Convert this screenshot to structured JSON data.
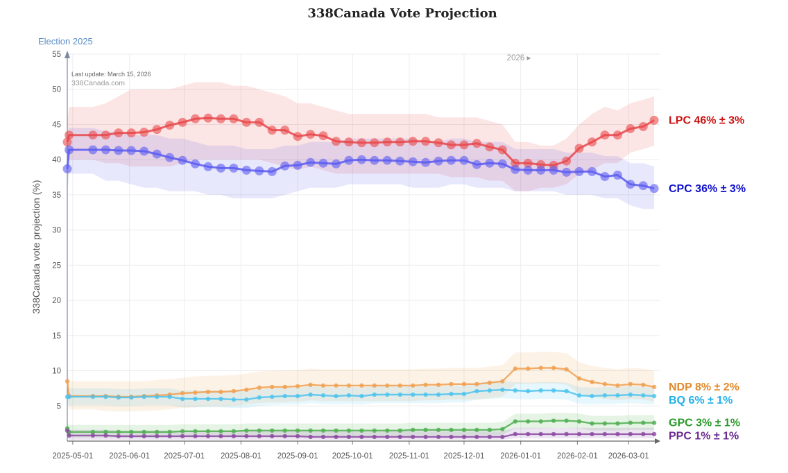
{
  "chart_data": {
    "type": "line",
    "title": "338Canada Vote Projection",
    "ylabel": "338Canada vote projection (%)",
    "xlabel": "",
    "ylim": [
      0,
      55
    ],
    "yticks": [
      5,
      10,
      15,
      20,
      25,
      30,
      35,
      40,
      45,
      50,
      55
    ],
    "xlim": [
      "2025-04-28",
      "2026-03-18"
    ],
    "xticks": [
      "2025-05-01",
      "2025-06-01",
      "2025-07-01",
      "2025-08-01",
      "2025-09-01",
      "2025-10-01",
      "2025-11-01",
      "2025-12-01",
      "2026-01-01",
      "2026-02-01",
      "2026-03-01"
    ],
    "election_label": "Election 2025",
    "last_update": "Last update: March 15, 2026",
    "watermark": "338Canada.com",
    "year_marker": "2026 ▸",
    "year_marker_date": "2026-01-01",
    "dates_big": [
      "2025-04-28",
      "2025-04-29",
      "2025-05-12",
      "2025-05-19",
      "2025-05-26",
      "2025-06-02",
      "2025-06-09",
      "2025-06-16",
      "2025-06-23",
      "2025-06-30",
      "2025-07-07",
      "2025-07-14",
      "2025-07-21",
      "2025-07-28",
      "2025-08-04",
      "2025-08-11",
      "2025-08-18",
      "2025-08-25",
      "2025-09-01",
      "2025-09-08",
      "2025-09-15",
      "2025-09-22",
      "2025-09-29",
      "2025-10-06",
      "2025-10-13",
      "2025-10-20",
      "2025-10-27",
      "2025-11-03",
      "2025-11-10",
      "2025-11-17",
      "2025-11-24",
      "2025-12-01",
      "2025-12-08",
      "2025-12-15",
      "2025-12-22",
      "2025-12-29",
      "2026-01-05",
      "2026-01-12",
      "2026-01-19",
      "2026-01-26",
      "2026-02-02",
      "2026-02-09",
      "2026-02-16",
      "2026-02-23",
      "2026-03-02",
      "2026-03-09",
      "2026-03-15"
    ],
    "dates_small": [
      "2025-04-28",
      "2025-04-29",
      "2025-05-12",
      "2025-05-19",
      "2025-05-26",
      "2025-06-02",
      "2025-06-09",
      "2025-06-16",
      "2025-06-23",
      "2025-06-30",
      "2025-07-07",
      "2025-07-14",
      "2025-07-21",
      "2025-07-28",
      "2025-08-04",
      "2025-08-11",
      "2025-08-18",
      "2025-08-25",
      "2025-09-01",
      "2025-09-08",
      "2025-09-15",
      "2025-09-22",
      "2025-09-29",
      "2025-10-06",
      "2025-10-13",
      "2025-10-20",
      "2025-10-27",
      "2025-11-03",
      "2025-11-10",
      "2025-11-17",
      "2025-11-24",
      "2025-12-01",
      "2025-12-08",
      "2025-12-15",
      "2025-12-22",
      "2025-12-29",
      "2026-01-05",
      "2026-01-12",
      "2026-01-19",
      "2026-01-26",
      "2026-02-02",
      "2026-02-09",
      "2026-02-16",
      "2026-02-23",
      "2026-03-02",
      "2026-03-09",
      "2026-03-15"
    ],
    "series": [
      {
        "name": "LPC",
        "color": "#e8474a",
        "label_color": "#cc1111",
        "label": "LPC 46% ± 3%",
        "marker": "big",
        "values": [
          42.5,
          43.5,
          43.5,
          43.5,
          43.8,
          43.8,
          43.9,
          44.3,
          44.9,
          45.3,
          45.8,
          45.9,
          45.8,
          45.8,
          45.3,
          45.3,
          44.2,
          44.2,
          43.3,
          43.6,
          43.4,
          42.6,
          42.5,
          42.4,
          42.4,
          42.5,
          42.5,
          42.6,
          42.6,
          42.4,
          42.1,
          42.1,
          42.3,
          41.8,
          41.4,
          39.5,
          39.5,
          39.3,
          39.2,
          39.8,
          41.6,
          42.5,
          43.5,
          43.5,
          44.4,
          44.7,
          45.6
        ],
        "upper": [
          45.5,
          47.5,
          47.5,
          48,
          49,
          50,
          50,
          50,
          50,
          50.5,
          51,
          51,
          51,
          50.5,
          50.5,
          50,
          49.5,
          49,
          48,
          48,
          47.5,
          47,
          46.5,
          46.5,
          46.5,
          46.5,
          46.5,
          46.5,
          46.5,
          46,
          46,
          46,
          46,
          45.5,
          45,
          42.5,
          42.5,
          42,
          42,
          43,
          45,
          46.5,
          47.5,
          47,
          48,
          48.5,
          49
        ],
        "lower": [
          39.5,
          40,
          40,
          39.5,
          39.5,
          39,
          39,
          39,
          39,
          39.5,
          40,
          40,
          40,
          40,
          40,
          40,
          39.5,
          39,
          38.5,
          39,
          38.5,
          38,
          38,
          38,
          38,
          38,
          38,
          38,
          38,
          38,
          37.5,
          37.5,
          37.5,
          37,
          37,
          35.5,
          35.5,
          36,
          36,
          36.5,
          38,
          38.5,
          39.5,
          39.5,
          41,
          41.5,
          42
        ]
      },
      {
        "name": "CPC",
        "color": "#5b5bf0",
        "label_color": "#1010cc",
        "label": "CPC 36% ± 3%",
        "marker": "big",
        "values": [
          38.7,
          41.4,
          41.4,
          41.4,
          41.3,
          41.3,
          41.2,
          40.8,
          40.3,
          39.9,
          39.4,
          39.0,
          38.8,
          38.8,
          38.5,
          38.4,
          38.3,
          39.1,
          39.2,
          39.6,
          39.5,
          39.4,
          39.9,
          40.0,
          39.9,
          39.9,
          39.8,
          39.7,
          39.6,
          39.8,
          39.9,
          39.9,
          39.3,
          39.5,
          39.4,
          38.6,
          38.5,
          38.5,
          38.5,
          38.2,
          38.3,
          38.3,
          37.6,
          37.8,
          36.5,
          36.3,
          35.9
        ],
        "upper": [
          41.5,
          44.5,
          44.5,
          44,
          44,
          43.5,
          43.5,
          43.5,
          43,
          43,
          42.5,
          42,
          42,
          42,
          41.5,
          41.5,
          41.5,
          42,
          42,
          42.5,
          42.5,
          42.5,
          43,
          43,
          43,
          43,
          43,
          43,
          42.5,
          42.5,
          43,
          43,
          42.5,
          42.5,
          42.5,
          41.5,
          41.5,
          41.5,
          41.5,
          41,
          41,
          41,
          40.5,
          40.5,
          39.5,
          39.5,
          39
        ],
        "lower": [
          35.5,
          38,
          38,
          37,
          37,
          36.5,
          36,
          36,
          35.5,
          35.5,
          35.5,
          35,
          35,
          34.5,
          34.5,
          34.5,
          34.5,
          35,
          35.5,
          36,
          36,
          36,
          36.5,
          36.5,
          36.5,
          36.5,
          36.5,
          36,
          36,
          36,
          36.5,
          36.5,
          36,
          36,
          36,
          35.5,
          35.5,
          35.5,
          35.5,
          35,
          35,
          35,
          34.5,
          34.5,
          33.5,
          33,
          33
        ]
      },
      {
        "name": "NDP",
        "color": "#f0a050",
        "label_color": "#e08a2a",
        "label": "NDP 8% ± 2%",
        "marker": "small",
        "values": [
          8.5,
          6.4,
          6.4,
          6.4,
          6.3,
          6.3,
          6.4,
          6.5,
          6.6,
          6.8,
          6.9,
          7.0,
          7.0,
          7.1,
          7.3,
          7.6,
          7.7,
          7.7,
          7.8,
          8.0,
          7.9,
          7.9,
          7.9,
          7.9,
          7.9,
          7.9,
          7.9,
          7.9,
          8.0,
          8.0,
          8.1,
          8.1,
          8.1,
          8.3,
          8.5,
          10.3,
          10.3,
          10.4,
          10.4,
          10.2,
          8.9,
          8.4,
          8.1,
          7.9,
          8.1,
          8.0,
          7.7
        ],
        "upper": [
          10.5,
          8.5,
          8.5,
          8.5,
          8.5,
          8.5,
          8.5,
          8.7,
          8.8,
          9,
          9.2,
          9.3,
          9.3,
          9.4,
          9.6,
          9.9,
          10,
          10,
          10.1,
          10.3,
          10.2,
          10.2,
          10.2,
          10.2,
          10.2,
          10.2,
          10.2,
          10.2,
          10.3,
          10.3,
          10.4,
          10.4,
          10.4,
          10.6,
          10.8,
          12.6,
          12.6,
          12.7,
          12.7,
          12.5,
          11.2,
          10.7,
          10.4,
          10.2,
          10.4,
          10.3,
          10
        ],
        "lower": [
          6.5,
          4.5,
          4.5,
          4.3,
          4.2,
          4.2,
          4.3,
          4.4,
          4.5,
          4.7,
          4.8,
          4.9,
          4.9,
          5,
          5.2,
          5.4,
          5.5,
          5.5,
          5.6,
          5.8,
          5.7,
          5.7,
          5.7,
          5.7,
          5.7,
          5.7,
          5.7,
          5.7,
          5.8,
          5.8,
          5.9,
          5.9,
          5.9,
          6.1,
          6.3,
          8.1,
          8.1,
          8.2,
          8.2,
          8,
          6.8,
          6.3,
          6,
          5.8,
          6,
          5.9,
          5.6
        ]
      },
      {
        "name": "BQ",
        "color": "#4cc3ee",
        "label_color": "#22b0e8",
        "label": "BQ 6% ± 1%",
        "marker": "small",
        "values": [
          6.3,
          6.3,
          6.3,
          6.3,
          6.2,
          6.2,
          6.3,
          6.3,
          6.3,
          6.0,
          6.0,
          6.0,
          6.0,
          5.9,
          5.9,
          6.2,
          6.3,
          6.4,
          6.4,
          6.6,
          6.5,
          6.4,
          6.5,
          6.4,
          6.6,
          6.6,
          6.6,
          6.6,
          6.6,
          6.6,
          6.7,
          6.7,
          7.1,
          7.2,
          7.3,
          7.2,
          7.1,
          7.2,
          7.2,
          7.1,
          6.5,
          6.4,
          6.5,
          6.5,
          6.6,
          6.5,
          6.4
        ],
        "upper": [
          7.5,
          7.5,
          7.5,
          7.5,
          7.4,
          7.4,
          7.5,
          7.5,
          7.5,
          7.2,
          7.2,
          7.2,
          7.2,
          7.1,
          7.1,
          7.4,
          7.5,
          7.6,
          7.6,
          7.8,
          7.7,
          7.6,
          7.7,
          7.6,
          7.8,
          7.8,
          7.8,
          7.8,
          7.8,
          7.8,
          7.9,
          7.9,
          8.3,
          8.4,
          8.5,
          8.4,
          8.3,
          8.4,
          8.4,
          8.3,
          7.7,
          7.6,
          7.7,
          7.7,
          7.8,
          7.7,
          7.6
        ],
        "lower": [
          5.1,
          5.1,
          5.1,
          5.1,
          5,
          5,
          5.1,
          5.1,
          5.1,
          4.8,
          4.8,
          4.8,
          4.8,
          4.7,
          4.7,
          5,
          5.1,
          5.2,
          5.2,
          5.4,
          5.3,
          5.2,
          5.3,
          5.2,
          5.4,
          5.4,
          5.4,
          5.4,
          5.4,
          5.4,
          5.5,
          5.5,
          5.9,
          6,
          6.1,
          6,
          5.9,
          6,
          6,
          5.9,
          5.3,
          5.2,
          5.3,
          5.3,
          5.4,
          5.3,
          5.2
        ]
      },
      {
        "name": "GPC",
        "color": "#4fae4f",
        "label_color": "#2a9a2a",
        "label": "GPC 3% ± 1%",
        "marker": "small",
        "values": [
          1.8,
          1.3,
          1.3,
          1.3,
          1.3,
          1.3,
          1.3,
          1.3,
          1.3,
          1.4,
          1.4,
          1.4,
          1.4,
          1.4,
          1.5,
          1.5,
          1.5,
          1.5,
          1.5,
          1.5,
          1.5,
          1.5,
          1.5,
          1.5,
          1.5,
          1.5,
          1.5,
          1.6,
          1.6,
          1.6,
          1.6,
          1.6,
          1.6,
          1.6,
          1.7,
          2.8,
          2.8,
          2.8,
          2.9,
          2.9,
          2.8,
          2.5,
          2.5,
          2.5,
          2.6,
          2.6,
          2.6
        ],
        "upper": [
          2.8,
          2.3,
          2.3,
          2.3,
          2.3,
          2.3,
          2.3,
          2.3,
          2.3,
          2.4,
          2.4,
          2.4,
          2.4,
          2.4,
          2.5,
          2.5,
          2.5,
          2.5,
          2.5,
          2.5,
          2.5,
          2.5,
          2.5,
          2.5,
          2.5,
          2.5,
          2.5,
          2.6,
          2.6,
          2.6,
          2.6,
          2.6,
          2.6,
          2.6,
          2.7,
          3.9,
          3.9,
          3.9,
          4,
          4,
          3.9,
          3.6,
          3.6,
          3.6,
          3.7,
          3.7,
          3.7
        ],
        "lower": [
          0.8,
          0.5,
          0.5,
          0.5,
          0.5,
          0.5,
          0.5,
          0.5,
          0.5,
          0.6,
          0.6,
          0.6,
          0.6,
          0.6,
          0.7,
          0.7,
          0.7,
          0.7,
          0.7,
          0.7,
          0.7,
          0.7,
          0.7,
          0.7,
          0.7,
          0.7,
          0.7,
          0.8,
          0.8,
          0.8,
          0.8,
          0.8,
          0.8,
          0.8,
          0.9,
          1.8,
          1.8,
          1.8,
          1.9,
          1.9,
          1.8,
          1.5,
          1.5,
          1.5,
          1.6,
          1.6,
          1.6
        ]
      },
      {
        "name": "PPC",
        "color": "#8a4aa0",
        "label_color": "#6a2a90",
        "label": "PPC 1% ± 1%",
        "marker": "small",
        "values": [
          1.5,
          0.8,
          0.8,
          0.8,
          0.7,
          0.7,
          0.7,
          0.7,
          0.7,
          0.7,
          0.7,
          0.7,
          0.7,
          0.7,
          0.7,
          0.7,
          0.7,
          0.7,
          0.7,
          0.6,
          0.6,
          0.6,
          0.6,
          0.6,
          0.6,
          0.6,
          0.6,
          0.6,
          0.6,
          0.6,
          0.6,
          0.6,
          0.6,
          0.6,
          0.6,
          1.0,
          1.0,
          1.0,
          1.0,
          1.0,
          1.0,
          1.0,
          1.0,
          1.0,
          1.0,
          1.0,
          1.0
        ],
        "upper": [
          2.3,
          1.6,
          1.6,
          1.6,
          1.5,
          1.5,
          1.5,
          1.5,
          1.5,
          1.5,
          1.5,
          1.5,
          1.5,
          1.5,
          1.5,
          1.5,
          1.5,
          1.5,
          1.5,
          1.4,
          1.4,
          1.4,
          1.4,
          1.4,
          1.4,
          1.4,
          1.4,
          1.4,
          1.4,
          1.4,
          1.4,
          1.4,
          1.4,
          1.4,
          1.4,
          1.9,
          1.9,
          1.9,
          1.9,
          1.9,
          1.9,
          1.9,
          1.9,
          1.9,
          1.9,
          1.9,
          1.9
        ],
        "lower": [
          0.7,
          0.2,
          0.2,
          0.2,
          0.2,
          0.2,
          0.2,
          0.2,
          0.2,
          0.2,
          0.2,
          0.2,
          0.2,
          0.2,
          0.2,
          0.2,
          0.2,
          0.2,
          0.2,
          0.2,
          0.2,
          0.2,
          0.2,
          0.2,
          0.2,
          0.2,
          0.2,
          0.2,
          0.2,
          0.2,
          0.2,
          0.2,
          0.2,
          0.2,
          0.2,
          0.4,
          0.4,
          0.4,
          0.4,
          0.4,
          0.4,
          0.4,
          0.4,
          0.4,
          0.4,
          0.4,
          0.4
        ]
      }
    ]
  }
}
